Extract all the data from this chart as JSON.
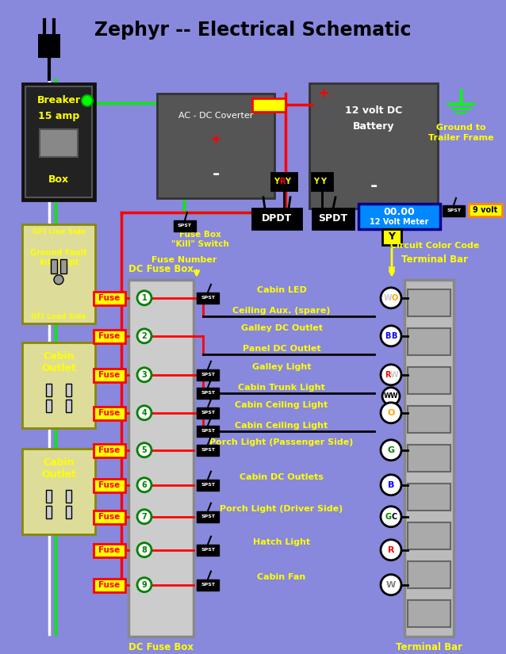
{
  "title": "Zephyr -- Electrical Schematic",
  "bg_color": "#8888DD",
  "fuse_rows": [
    {
      "num": 1,
      "label1": "Cabin LED",
      "label2": "Ceiling Aux. (spare)",
      "code": "WO",
      "has_spst1": true,
      "has_spst2": false
    },
    {
      "num": 2,
      "label1": "Galley DC Outlet",
      "label2": "Panel DC Outlet",
      "code": "BB",
      "has_spst1": false,
      "has_spst2": false
    },
    {
      "num": 3,
      "label1": "Galley Light",
      "label2": "Cabin Trunk Light",
      "code": "RW",
      "has_spst1": true,
      "has_spst2": true
    },
    {
      "num": 4,
      "label1": "Cabin Ceiling Light",
      "label2": "Cabin Ceiling Light",
      "code": "O",
      "has_spst1": true,
      "has_spst2": true
    },
    {
      "num": 5,
      "label1": "Porch Light (Passenger Side)",
      "label2": "",
      "code": "G",
      "has_spst1": true,
      "has_spst2": false
    },
    {
      "num": 6,
      "label1": "Cabin DC Outlets",
      "label2": "",
      "code": "B",
      "has_spst1": true,
      "has_spst2": false
    },
    {
      "num": 7,
      "label1": "Porch Light (Driver Side)",
      "label2": "",
      "code": "GC",
      "has_spst1": true,
      "has_spst2": false
    },
    {
      "num": 8,
      "label1": "Hatch Light",
      "label2": "",
      "code": "R",
      "has_spst1": true,
      "has_spst2": false
    },
    {
      "num": 9,
      "label1": "Cabin Fan",
      "label2": "",
      "code": "W",
      "has_spst1": true,
      "has_spst2": false
    }
  ]
}
